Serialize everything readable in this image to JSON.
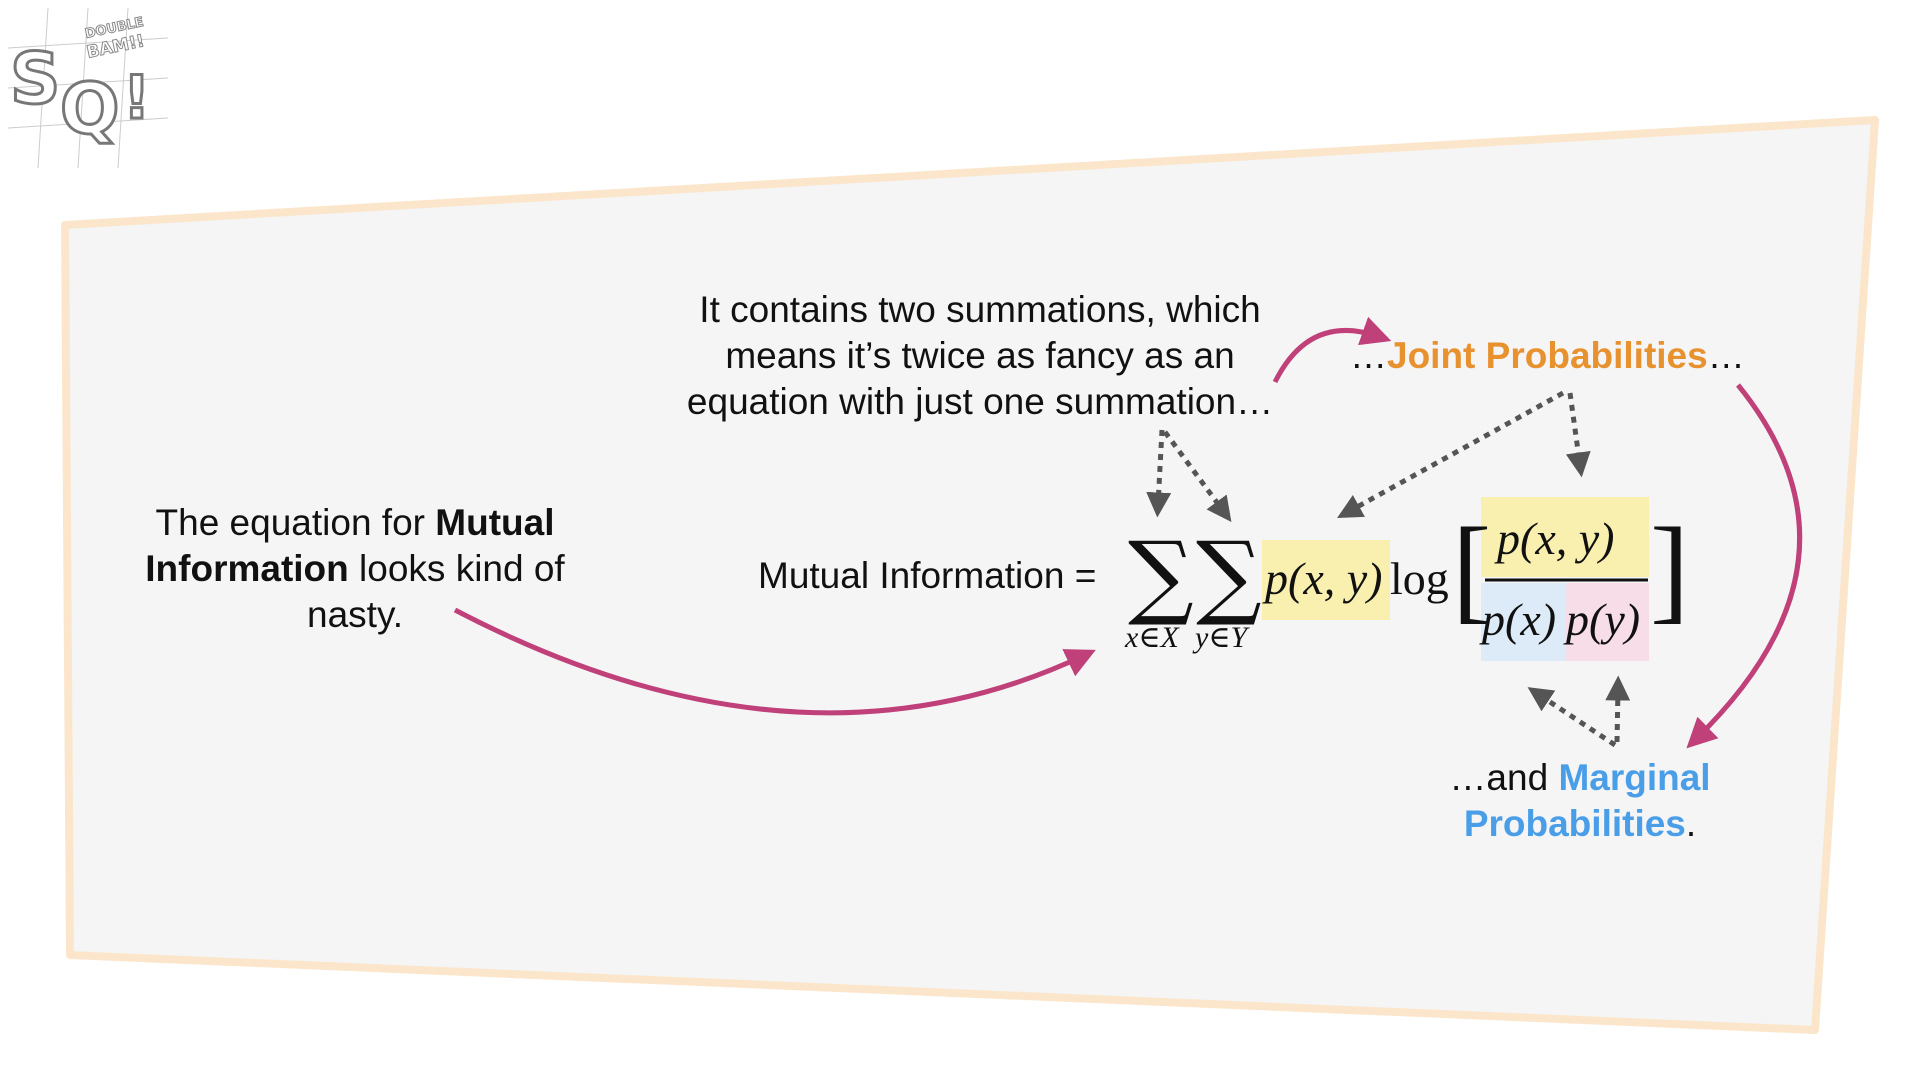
{
  "logo": {
    "big_letters": "SQ!",
    "small_text": [
      "DOUBLE",
      "BAM!!"
    ]
  },
  "left_note": {
    "line1_plain": "The equation for ",
    "line1_bold": "Mutual",
    "line2_bold": "Information",
    "line2_plain": " looks kind of",
    "line3": "nasty."
  },
  "top_note": {
    "lines": [
      "It contains two summations, which",
      "means it’s twice as fancy as an",
      "equation with just one summation…"
    ]
  },
  "joint_note": {
    "prefix": "…",
    "highlight": "Joint Probabilities",
    "suffix": "…"
  },
  "marginal_note": {
    "prefix": "…and ",
    "highlight1": "Marginal",
    "highlight2": "Probabilities",
    "suffix": "."
  },
  "equation": {
    "label": "Mutual Information =",
    "sigma": "∑",
    "sub_x": "x∈X",
    "sub_y": "y∈Y",
    "joint": "p(x, y)",
    "log": "log",
    "numerator": "p(x, y)",
    "denom_x": "p(x)",
    "denom_y": "p(y)",
    "left_bracket": "[",
    "right_bracket": "]"
  },
  "colors": {
    "panel_fill": "#f5f5f5",
    "panel_border": "#fbe6cc",
    "arrow_curved": "#c0407a",
    "arrow_dotted": "#555555",
    "joint_text": "#e8912f",
    "marginal_text": "#4a9ee8",
    "joint_highlight": "#f9f0b0",
    "marg_x_highlight": "#dcebf7",
    "marg_y_highlight": "#f6dde7"
  }
}
